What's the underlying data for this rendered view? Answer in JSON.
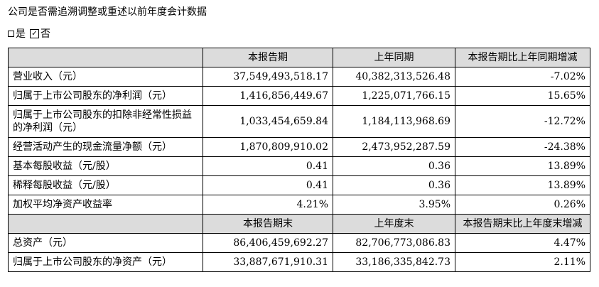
{
  "heading": "公司是否需追溯调整或重述以前年度会计数据",
  "options": {
    "yes_label": "是",
    "no_label": "否",
    "checked": "否"
  },
  "table1": {
    "headers": [
      "",
      "本报告期",
      "上年同期",
      "本报告期比上年同期增减"
    ],
    "rows": [
      [
        "营业收入（元）",
        "37,549,493,518.17",
        "40,382,313,526.48",
        "-7.02%"
      ],
      [
        "归属于上市公司股东的净利润（元）",
        "1,416,856,449.67",
        "1,225,071,766.15",
        "15.65%"
      ],
      [
        "归属于上市公司股东的扣除非经常性损益的净利润（元）",
        "1,033,454,659.84",
        "1,184,113,968.69",
        "-12.72%"
      ],
      [
        "经营活动产生的现金流量净额（元）",
        "1,870,809,910.02",
        "2,473,952,287.59",
        "-24.38%"
      ],
      [
        "基本每股收益（元/股）",
        "0.41",
        "0.36",
        "13.89%"
      ],
      [
        "稀释每股收益（元/股）",
        "0.41",
        "0.36",
        "13.89%"
      ],
      [
        "加权平均净资产收益率",
        "4.21%",
        "3.95%",
        "0.26%"
      ]
    ]
  },
  "table2": {
    "headers": [
      "",
      "本报告期末",
      "上年度末",
      "本报告期末比上年度末增减"
    ],
    "rows": [
      [
        "总资产（元）",
        "86,406,459,692.27",
        "82,706,773,086.83",
        "4.47%"
      ],
      [
        "归属于上市公司股东的净资产（元）",
        "33,887,671,910.31",
        "33,186,335,842.73",
        "2.11%"
      ]
    ]
  }
}
